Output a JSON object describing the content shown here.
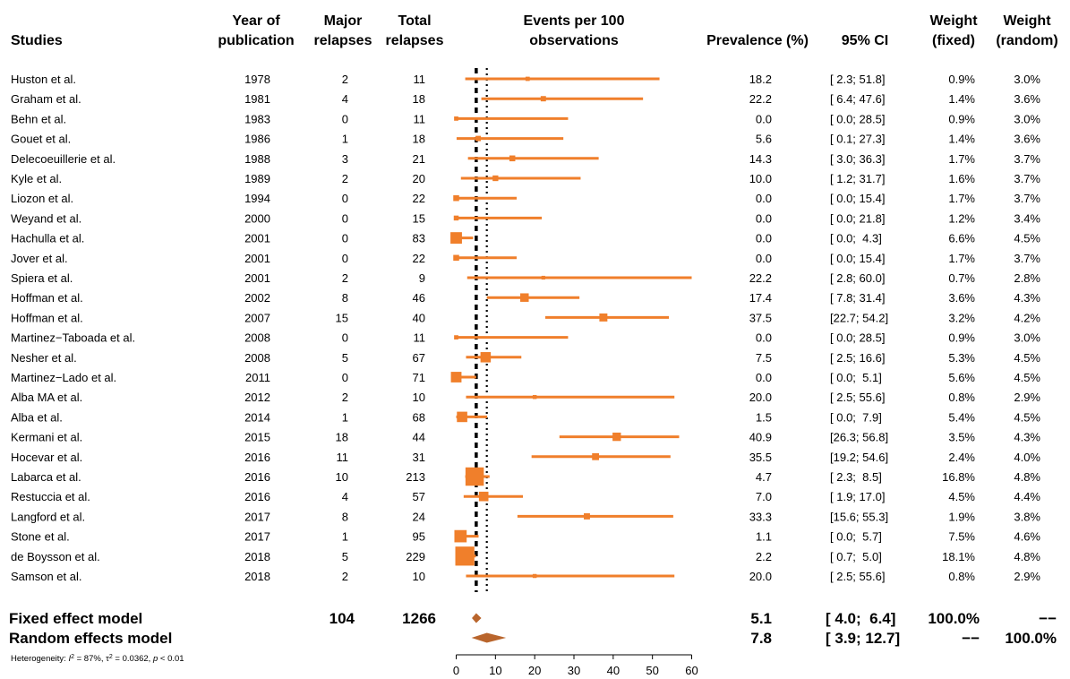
{
  "headers": {
    "studies": "Studies",
    "year": [
      "Year of",
      "publication"
    ],
    "major": [
      "Major",
      "relapses"
    ],
    "total": [
      "Total",
      "relapses"
    ],
    "events": [
      "Events per 100",
      "observations"
    ],
    "prevalence": "Prevalence (%)",
    "ci": "95% CI",
    "weight_fixed": [
      "Weight",
      "(fixed)"
    ],
    "weight_random": [
      "Weight",
      "(random)"
    ]
  },
  "chart_data": {
    "type": "forest",
    "x_axis": {
      "min": 0,
      "max": 60,
      "ticks": [
        0,
        10,
        20,
        30,
        40,
        50,
        60
      ]
    },
    "fixed_line": 5.1,
    "random_line": 7.8,
    "colors": {
      "marker": "#f07f2b",
      "diamond": "#b9652c",
      "line": "#000000"
    },
    "studies": [
      {
        "study": "Huston et al.",
        "year": "1978",
        "major": "2",
        "total": "11",
        "prev": 18.2,
        "lo": 2.3,
        "hi": 51.8,
        "prev_text": "18.2",
        "ci_text": "[ 2.3; 51.8]",
        "wf": "0.9%",
        "wr": "3.0%",
        "wf_num": 0.9
      },
      {
        "study": "Graham et al.",
        "year": "1981",
        "major": "4",
        "total": "18",
        "prev": 22.2,
        "lo": 6.4,
        "hi": 47.6,
        "prev_text": "22.2",
        "ci_text": "[ 6.4; 47.6]",
        "wf": "1.4%",
        "wr": "3.6%",
        "wf_num": 1.4
      },
      {
        "study": "Behn et al.",
        "year": "1983",
        "major": "0",
        "total": "11",
        "prev": 0.0,
        "lo": 0.0,
        "hi": 28.5,
        "prev_text": "0.0",
        "ci_text": "[ 0.0; 28.5]",
        "wf": "0.9%",
        "wr": "3.0%",
        "wf_num": 0.9
      },
      {
        "study": "Gouet et al.",
        "year": "1986",
        "major": "1",
        "total": "18",
        "prev": 5.6,
        "lo": 0.1,
        "hi": 27.3,
        "prev_text": "5.6",
        "ci_text": "[ 0.1; 27.3]",
        "wf": "1.4%",
        "wr": "3.6%",
        "wf_num": 1.4
      },
      {
        "study": "Delecoeuillerie et al.",
        "year": "1988",
        "major": "3",
        "total": "21",
        "prev": 14.3,
        "lo": 3.0,
        "hi": 36.3,
        "prev_text": "14.3",
        "ci_text": "[ 3.0; 36.3]",
        "wf": "1.7%",
        "wr": "3.7%",
        "wf_num": 1.7
      },
      {
        "study": "Kyle et al.",
        "year": "1989",
        "major": "2",
        "total": "20",
        "prev": 10.0,
        "lo": 1.2,
        "hi": 31.7,
        "prev_text": "10.0",
        "ci_text": "[ 1.2; 31.7]",
        "wf": "1.6%",
        "wr": "3.7%",
        "wf_num": 1.6
      },
      {
        "study": "Liozon et al.",
        "year": "1994",
        "major": "0",
        "total": "22",
        "prev": 0.0,
        "lo": 0.0,
        "hi": 15.4,
        "prev_text": "0.0",
        "ci_text": "[ 0.0; 15.4]",
        "wf": "1.7%",
        "wr": "3.7%",
        "wf_num": 1.7
      },
      {
        "study": "Weyand et al.",
        "year": "2000",
        "major": "0",
        "total": "15",
        "prev": 0.0,
        "lo": 0.0,
        "hi": 21.8,
        "prev_text": "0.0",
        "ci_text": "[ 0.0; 21.8]",
        "wf": "1.2%",
        "wr": "3.4%",
        "wf_num": 1.2
      },
      {
        "study": "Hachulla et al.",
        "year": "2001",
        "major": "0",
        "total": "83",
        "prev": 0.0,
        "lo": 0.0,
        "hi": 4.3,
        "prev_text": "0.0",
        "ci_text": "[ 0.0;  4.3]",
        "wf": "6.6%",
        "wr": "4.5%",
        "wf_num": 6.6
      },
      {
        "study": "Jover et al.",
        "year": "2001",
        "major": "0",
        "total": "22",
        "prev": 0.0,
        "lo": 0.0,
        "hi": 15.4,
        "prev_text": "0.0",
        "ci_text": "[ 0.0; 15.4]",
        "wf": "1.7%",
        "wr": "3.7%",
        "wf_num": 1.7
      },
      {
        "study": "Spiera et al.",
        "year": "2001",
        "major": "2",
        "total": "9",
        "prev": 22.2,
        "lo": 2.8,
        "hi": 60.0,
        "prev_text": "22.2",
        "ci_text": "[ 2.8; 60.0]",
        "wf": "0.7%",
        "wr": "2.8%",
        "wf_num": 0.7
      },
      {
        "study": "Hoffman et al.",
        "year": "2002",
        "major": "8",
        "total": "46",
        "prev": 17.4,
        "lo": 7.8,
        "hi": 31.4,
        "prev_text": "17.4",
        "ci_text": "[ 7.8; 31.4]",
        "wf": "3.6%",
        "wr": "4.3%",
        "wf_num": 3.6
      },
      {
        "study": "Hoffman et al.",
        "year": "2007",
        "major": "15",
        "total": "40",
        "prev": 37.5,
        "lo": 22.7,
        "hi": 54.2,
        "prev_text": "37.5",
        "ci_text": "[22.7; 54.2]",
        "wf": "3.2%",
        "wr": "4.2%",
        "wf_num": 3.2
      },
      {
        "study": "Martinez−Taboada et al.",
        "year": "2008",
        "major": "0",
        "total": "11",
        "prev": 0.0,
        "lo": 0.0,
        "hi": 28.5,
        "prev_text": "0.0",
        "ci_text": "[ 0.0; 28.5]",
        "wf": "0.9%",
        "wr": "3.0%",
        "wf_num": 0.9
      },
      {
        "study": "Nesher et al.",
        "year": "2008",
        "major": "5",
        "total": "67",
        "prev": 7.5,
        "lo": 2.5,
        "hi": 16.6,
        "prev_text": "7.5",
        "ci_text": "[ 2.5; 16.6]",
        "wf": "5.3%",
        "wr": "4.5%",
        "wf_num": 5.3
      },
      {
        "study": "Martinez−Lado et al.",
        "year": "2011",
        "major": "0",
        "total": "71",
        "prev": 0.0,
        "lo": 0.0,
        "hi": 5.1,
        "prev_text": "0.0",
        "ci_text": "[ 0.0;  5.1]",
        "wf": "5.6%",
        "wr": "4.5%",
        "wf_num": 5.6
      },
      {
        "study": "Alba MA et al.",
        "year": "2012",
        "major": "2",
        "total": "10",
        "prev": 20.0,
        "lo": 2.5,
        "hi": 55.6,
        "prev_text": "20.0",
        "ci_text": "[ 2.5; 55.6]",
        "wf": "0.8%",
        "wr": "2.9%",
        "wf_num": 0.8
      },
      {
        "study": "Alba et al.",
        "year": "2014",
        "major": "1",
        "total": "68",
        "prev": 1.5,
        "lo": 0.0,
        "hi": 7.9,
        "prev_text": "1.5",
        "ci_text": "[ 0.0;  7.9]",
        "wf": "5.4%",
        "wr": "4.5%",
        "wf_num": 5.4
      },
      {
        "study": "Kermani et al.",
        "year": "2015",
        "major": "18",
        "total": "44",
        "prev": 40.9,
        "lo": 26.3,
        "hi": 56.8,
        "prev_text": "40.9",
        "ci_text": "[26.3; 56.8]",
        "wf": "3.5%",
        "wr": "4.3%",
        "wf_num": 3.5
      },
      {
        "study": "Hocevar et al.",
        "year": "2016",
        "major": "11",
        "total": "31",
        "prev": 35.5,
        "lo": 19.2,
        "hi": 54.6,
        "prev_text": "35.5",
        "ci_text": "[19.2; 54.6]",
        "wf": "2.4%",
        "wr": "4.0%",
        "wf_num": 2.4
      },
      {
        "study": "Labarca et al.",
        "year": "2016",
        "major": "10",
        "total": "213",
        "prev": 4.7,
        "lo": 2.3,
        "hi": 8.5,
        "prev_text": "4.7",
        "ci_text": "[ 2.3;  8.5]",
        "wf": "16.8%",
        "wr": "4.8%",
        "wf_num": 16.8
      },
      {
        "study": "Restuccia et al.",
        "year": "2016",
        "major": "4",
        "total": "57",
        "prev": 7.0,
        "lo": 1.9,
        "hi": 17.0,
        "prev_text": "7.0",
        "ci_text": "[ 1.9; 17.0]",
        "wf": "4.5%",
        "wr": "4.4%",
        "wf_num": 4.5
      },
      {
        "study": "Langford et al.",
        "year": "2017",
        "major": "8",
        "total": "24",
        "prev": 33.3,
        "lo": 15.6,
        "hi": 55.3,
        "prev_text": "33.3",
        "ci_text": "[15.6; 55.3]",
        "wf": "1.9%",
        "wr": "3.8%",
        "wf_num": 1.9
      },
      {
        "study": "Stone et al.",
        "year": "2017",
        "major": "1",
        "total": "95",
        "prev": 1.1,
        "lo": 0.0,
        "hi": 5.7,
        "prev_text": "1.1",
        "ci_text": "[ 0.0;  5.7]",
        "wf": "7.5%",
        "wr": "4.6%",
        "wf_num": 7.5
      },
      {
        "study": "de Boysson et al.",
        "year": "2018",
        "major": "5",
        "total": "229",
        "prev": 2.2,
        "lo": 0.7,
        "hi": 5.0,
        "prev_text": "2.2",
        "ci_text": "[ 0.7;  5.0]",
        "wf": "18.1%",
        "wr": "4.8%",
        "wf_num": 18.1
      },
      {
        "study": "Samson et al.",
        "year": "2018",
        "major": "2",
        "total": "10",
        "prev": 20.0,
        "lo": 2.5,
        "hi": 55.6,
        "prev_text": "20.0",
        "ci_text": "[ 2.5; 55.6]",
        "wf": "0.8%",
        "wr": "2.9%",
        "wf_num": 0.8
      }
    ],
    "summary": [
      {
        "label": "Fixed effect model",
        "major": "104",
        "total": "1266",
        "prev": 5.1,
        "lo": 4.0,
        "hi": 6.4,
        "prev_text": "5.1",
        "ci_text": "[ 4.0;  6.4]",
        "wf": "100.0%",
        "wr": "−−"
      },
      {
        "label": "Random effects model",
        "major": "",
        "total": "",
        "prev": 7.8,
        "lo": 3.9,
        "hi": 12.7,
        "prev_text": "7.8",
        "ci_text": "[ 3.9; 12.7]",
        "wf": "−−",
        "wr": "100.0%"
      }
    ],
    "heterogeneity": {
      "prefix": "Heterogeneity: ",
      "i2_label": "I",
      "i2_value": " = 87%, ",
      "tau2_label": "τ",
      "tau2_value": " = 0.0362, ",
      "p_label": "p",
      "p_value": " < 0.01"
    }
  }
}
